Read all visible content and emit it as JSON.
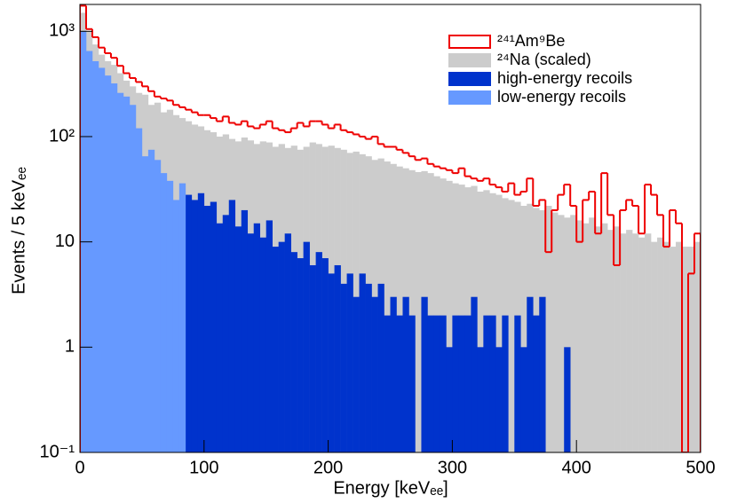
{
  "chart_data": {
    "type": "histogram",
    "xlabel": "Energy [keVₑₑ]",
    "ylabel": "Events / 5 keVₑₑ",
    "bins": [
      0,
      5,
      10,
      15,
      20,
      25,
      30,
      35,
      40,
      45,
      50,
      55,
      60,
      65,
      70,
      75,
      80,
      85,
      90,
      95,
      100,
      105,
      110,
      115,
      120,
      125,
      130,
      135,
      140,
      145,
      150,
      155,
      160,
      165,
      170,
      175,
      180,
      185,
      190,
      195,
      200,
      205,
      210,
      215,
      220,
      225,
      230,
      235,
      240,
      245,
      250,
      255,
      260,
      265,
      270,
      275,
      280,
      285,
      290,
      295,
      300,
      305,
      310,
      315,
      320,
      325,
      330,
      335,
      340,
      345,
      350,
      355,
      360,
      365,
      370,
      375,
      380,
      385,
      390,
      395,
      400,
      405,
      410,
      415,
      420,
      425,
      430,
      435,
      440,
      445,
      450,
      455,
      460,
      465,
      470,
      475,
      480,
      485,
      490,
      495,
      500
    ],
    "series": [
      {
        "name": "²⁴Na (scaled)",
        "color": "#cccccc",
        "style": "fill",
        "values": [
          1500,
          1000,
          750,
          600,
          520,
          480,
          400,
          340,
          300,
          260,
          250,
          200,
          210,
          170,
          180,
          160,
          150,
          140,
          130,
          125,
          115,
          110,
          100,
          105,
          95,
          90,
          98,
          92,
          85,
          90,
          88,
          80,
          85,
          78,
          82,
          75,
          80,
          88,
          85,
          80,
          82,
          78,
          75,
          70,
          72,
          68,
          65,
          60,
          62,
          58,
          55,
          52,
          50,
          48,
          46,
          47,
          45,
          42,
          40,
          38,
          36,
          35,
          33,
          34,
          30,
          31,
          29,
          28,
          26,
          25,
          24,
          22,
          23,
          21,
          20,
          22,
          19,
          18,
          17,
          18,
          16,
          15,
          17,
          14,
          15,
          13,
          14,
          12,
          13,
          12,
          11,
          12,
          10,
          11,
          10,
          9,
          10,
          9,
          9,
          10
        ]
      },
      {
        "name": "high-energy recoils",
        "color": "#0033cc",
        "style": "fill",
        "values": [
          0,
          0,
          0,
          0,
          0,
          0,
          0,
          0,
          0,
          0,
          0,
          0,
          0,
          0,
          0,
          0,
          0,
          28,
          25,
          29,
          22,
          24,
          15,
          18,
          25,
          14,
          20,
          12,
          15,
          11,
          16,
          9,
          10,
          12,
          8,
          7,
          10,
          6,
          8,
          7,
          5,
          6,
          4,
          5,
          3,
          5,
          4,
          3,
          4,
          2,
          3,
          2,
          3,
          2,
          0,
          3,
          2,
          2,
          2,
          1,
          2,
          2,
          2,
          3,
          1,
          2,
          2,
          1,
          2,
          0,
          2,
          1,
          3,
          2,
          3,
          0,
          0,
          0,
          1,
          0,
          0,
          0,
          0,
          0,
          0,
          0,
          0,
          0,
          0,
          0,
          0,
          0,
          0,
          0,
          0,
          0,
          0,
          0,
          0,
          0
        ]
      },
      {
        "name": "low-energy recoils",
        "color": "#6699ff",
        "style": "fill",
        "values": [
          1000,
          650,
          520,
          450,
          380,
          320,
          260,
          240,
          200,
          120,
          65,
          75,
          60,
          45,
          38,
          25,
          36,
          0,
          0,
          0,
          0,
          0,
          0,
          0,
          0,
          0,
          0,
          0,
          0,
          0,
          0,
          0,
          0,
          0,
          0,
          0,
          0,
          0,
          0,
          0,
          0,
          0,
          0,
          0,
          0,
          0,
          0,
          0,
          0,
          0,
          0,
          0,
          0,
          0,
          0,
          0,
          0,
          0,
          0,
          0,
          0,
          0,
          0,
          0,
          0,
          0,
          0,
          0,
          0,
          0,
          0,
          0,
          0,
          0,
          0,
          0,
          0,
          0,
          0,
          0,
          0,
          0,
          0,
          0,
          0,
          0,
          0,
          0,
          0,
          0,
          0,
          0,
          0,
          0,
          0,
          0,
          0,
          0,
          0,
          0
        ]
      },
      {
        "name": "²⁴¹Am⁹Be",
        "color": "#ee0000",
        "style": "step",
        "values": [
          1750,
          1050,
          880,
          700,
          620,
          560,
          470,
          400,
          360,
          330,
          300,
          270,
          240,
          230,
          220,
          200,
          190,
          180,
          170,
          160,
          160,
          150,
          140,
          155,
          135,
          130,
          140,
          125,
          120,
          130,
          140,
          120,
          115,
          110,
          120,
          135,
          125,
          140,
          140,
          130,
          120,
          130,
          115,
          110,
          105,
          100,
          95,
          100,
          85,
          80,
          80,
          75,
          70,
          65,
          60,
          62,
          55,
          52,
          50,
          48,
          45,
          50,
          42,
          40,
          38,
          40,
          35,
          33,
          30,
          36,
          28,
          30,
          40,
          22,
          25,
          8,
          20,
          28,
          35,
          22,
          10,
          25,
          30,
          12,
          45,
          18,
          6,
          20,
          25,
          22,
          12,
          35,
          28,
          18,
          9,
          20,
          15,
          0,
          5,
          12
        ]
      }
    ],
    "xlim": [
      0,
      500
    ],
    "xticks": [
      0,
      100,
      200,
      300,
      400,
      500
    ],
    "ylim": [
      0.1,
      1800
    ],
    "log_y": true,
    "yticks": [
      {
        "value": 0.1,
        "label": "10⁻¹"
      },
      1,
      10,
      {
        "value": 100,
        "label": "10²"
      },
      {
        "value": 1000,
        "label": "10³"
      }
    ],
    "legend": "upper right"
  }
}
